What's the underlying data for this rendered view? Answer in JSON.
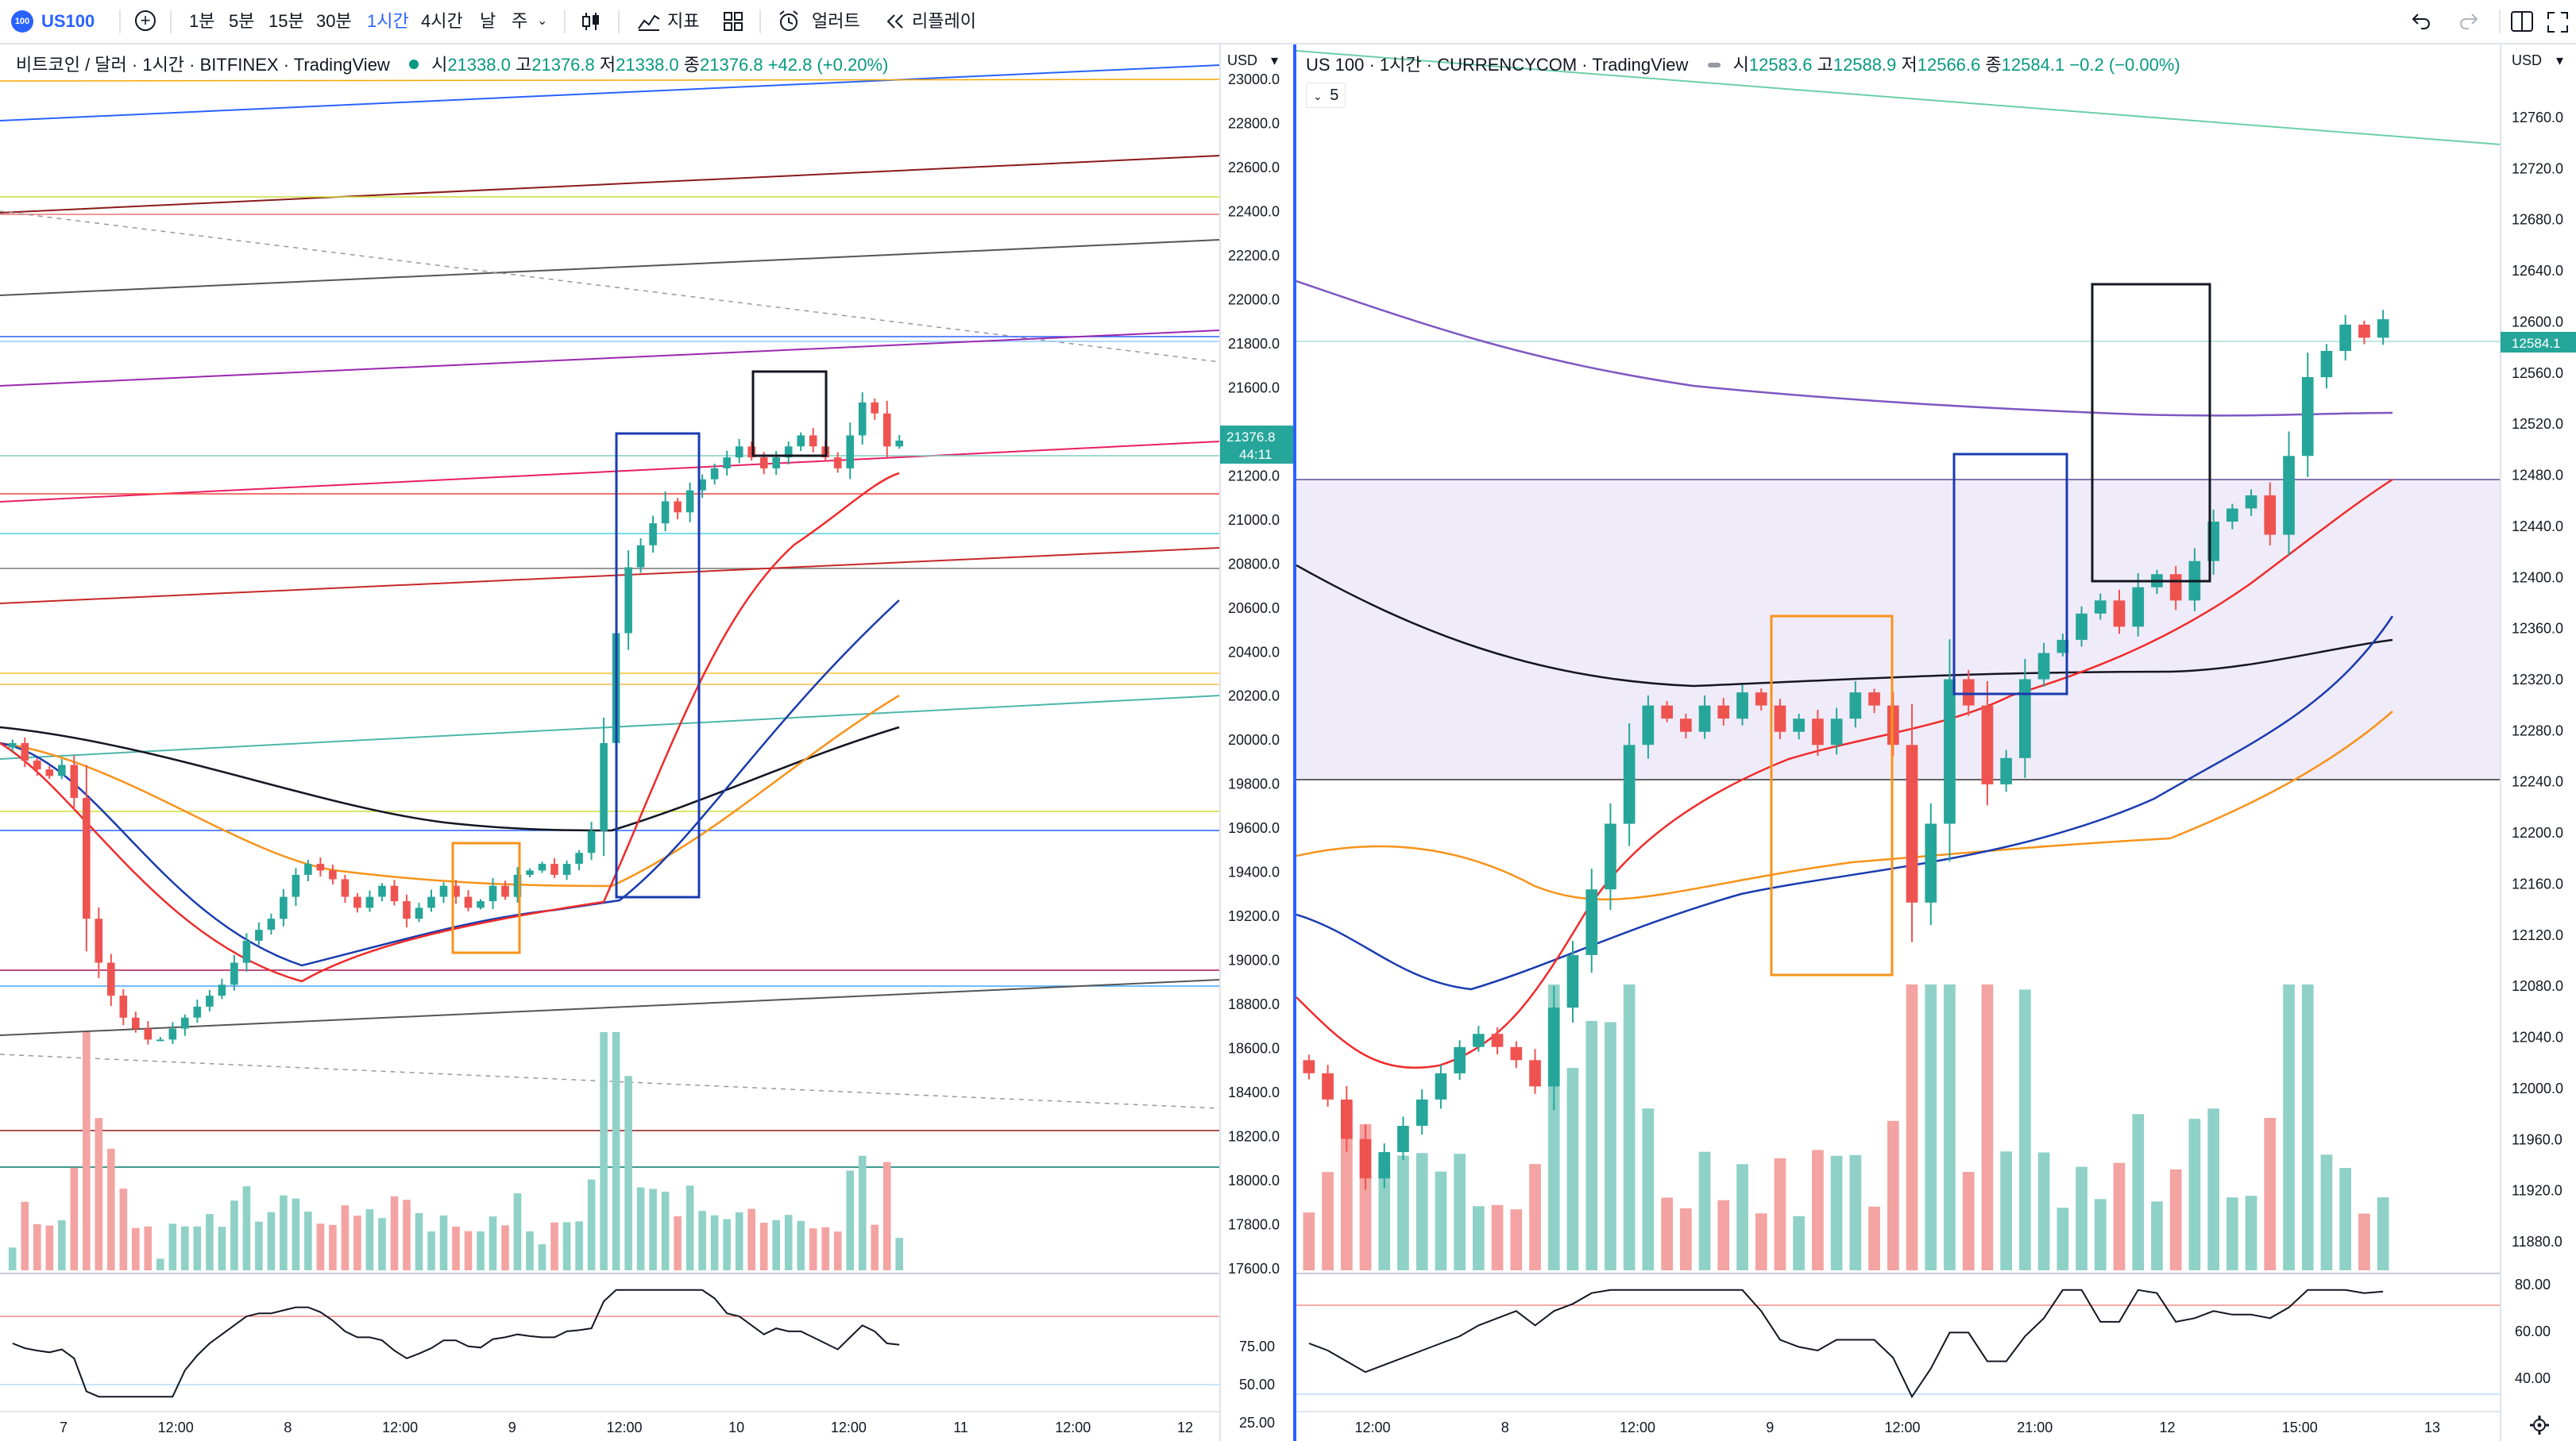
{
  "toolbar": {
    "symbol": "US100",
    "logo_text": "100",
    "intervals": [
      "1분",
      "5분",
      "15분",
      "30분",
      "1시간",
      "4시간",
      "날",
      "주"
    ],
    "active_interval": "1시간",
    "indicators_label": "지표",
    "alert_label": "얼러트",
    "replay_label": "리플레이"
  },
  "colors": {
    "up": "#26a69a",
    "down": "#ef5350",
    "accent": "#2962ff",
    "vol_up": "#8fd1c7",
    "vol_down": "#f3a3a1"
  },
  "left": {
    "title": "비트코인 / 달러 · 1시간 · BITFINEX · TradingView",
    "ohlc_o": "21338.0",
    "ohlc_h": "21376.8",
    "ohlc_l": "21338.0",
    "ohlc_c": "21376.8",
    "change": "+42.8 (+0.20%)",
    "currency": "USD",
    "price_label": "21376.8",
    "countdown": "44:11",
    "price_ticks": [
      "23000.0",
      "22800.0",
      "22600.0",
      "22400.0",
      "22200.0",
      "22000.0",
      "21800.0",
      "21600.0",
      "21400.0",
      "21200.0",
      "21000.0",
      "20800.0",
      "20600.0",
      "20400.0",
      "20200.0",
      "20000.0",
      "19800.0",
      "19600.0",
      "19400.0",
      "19200.0",
      "19000.0",
      "18800.0",
      "18600.0",
      "18400.0",
      "18200.0",
      "18000.0",
      "17800.0",
      "17600.0"
    ],
    "osc_ticks": [
      "75.00",
      "50.00",
      "25.00"
    ],
    "time_ticks": [
      "7",
      "12:00",
      "8",
      "12:00",
      "9",
      "12:00",
      "10",
      "12:00",
      "11",
      "12:00",
      "12"
    ]
  },
  "right": {
    "title": "US 100 · 1시간 · CURRENCYCOM · TradingView",
    "ohlc_o": "12583.6",
    "ohlc_h": "12588.9",
    "ohlc_l": "12566.6",
    "ohlc_c": "12584.1",
    "change": "−0.2 (−0.00%)",
    "sub_count": "5",
    "currency": "USD",
    "price_label": "12584.1",
    "price_ticks": [
      "12760.0",
      "12720.0",
      "12680.0",
      "12640.0",
      "12600.0",
      "12560.0",
      "12520.0",
      "12480.0",
      "12440.0",
      "12400.0",
      "12360.0",
      "12320.0",
      "12280.0",
      "12240.0",
      "12200.0",
      "12160.0",
      "12120.0",
      "12080.0",
      "12040.0",
      "12000.0",
      "11960.0",
      "11920.0",
      "11880.0"
    ],
    "osc_ticks": [
      "80.00",
      "60.00",
      "40.00"
    ],
    "time_ticks": [
      "12:00",
      "8",
      "12:00",
      "9",
      "12:00",
      "21:00",
      "12",
      "15:00",
      "13"
    ]
  },
  "chart_data": [
    {
      "type": "candlestick",
      "title": "비트코인 / 달러 · 1시간 · BITFINEX",
      "ylabel": "USD",
      "ylim": [
        17600,
        23100
      ],
      "x_labels": [
        "7",
        "12:00",
        "8",
        "12:00",
        "9",
        "12:00",
        "10",
        "12:00",
        "11",
        "12:00",
        "12"
      ],
      "key_prices": {
        "open": 21338.0,
        "high": 21376.8,
        "low": 21338.0,
        "close": 21376.8
      },
      "path_closes": [
        20000,
        19920,
        19880,
        19850,
        19900,
        19750,
        19200,
        19000,
        18850,
        18750,
        18700,
        18650,
        18650,
        18700,
        18750,
        18800,
        18850,
        18900,
        19000,
        19100,
        19150,
        19200,
        19300,
        19400,
        19450,
        19420,
        19380,
        19300,
        19250,
        19300,
        19350,
        19280,
        19200,
        19250,
        19300,
        19350,
        19300,
        19250,
        19280,
        19350,
        19300,
        19400,
        19420,
        19450,
        19400,
        19450,
        19500,
        19600,
        20000,
        20500,
        20800,
        20900,
        21000,
        21100,
        21050,
        21150,
        21200,
        21250,
        21300,
        21350,
        21300,
        21250,
        21300,
        21350,
        21400,
        21350,
        21300,
        21250,
        21400,
        21550,
        21500,
        21350,
        21376.8
      ]
    },
    {
      "type": "candlestick",
      "title": "US 100 · 1시간 · CURRENCYCOM",
      "ylabel": "USD",
      "ylim": [
        11860,
        12780
      ],
      "x_labels": [
        "12:00",
        "8",
        "12:00",
        "9",
        "12:00",
        "21:00",
        "12",
        "15:00",
        "13"
      ],
      "key_prices": {
        "open": 12583.6,
        "high": 12588.9,
        "low": 12566.6,
        "close": 12584.1
      },
      "path_closes": [
        12010,
        11990,
        11960,
        11930,
        11950,
        11970,
        11990,
        12010,
        12030,
        12040,
        12030,
        12020,
        12000,
        12060,
        12100,
        12150,
        12200,
        12260,
        12290,
        12280,
        12270,
        12290,
        12280,
        12300,
        12290,
        12270,
        12280,
        12260,
        12280,
        12300,
        12290,
        12260,
        12140,
        12200,
        12310,
        12290,
        12230,
        12250,
        12310,
        12330,
        12340,
        12360,
        12370,
        12350,
        12380,
        12390,
        12370,
        12400,
        12430,
        12440,
        12450,
        12420,
        12480,
        12540,
        12560,
        12580,
        12570,
        12584.1
      ]
    }
  ]
}
